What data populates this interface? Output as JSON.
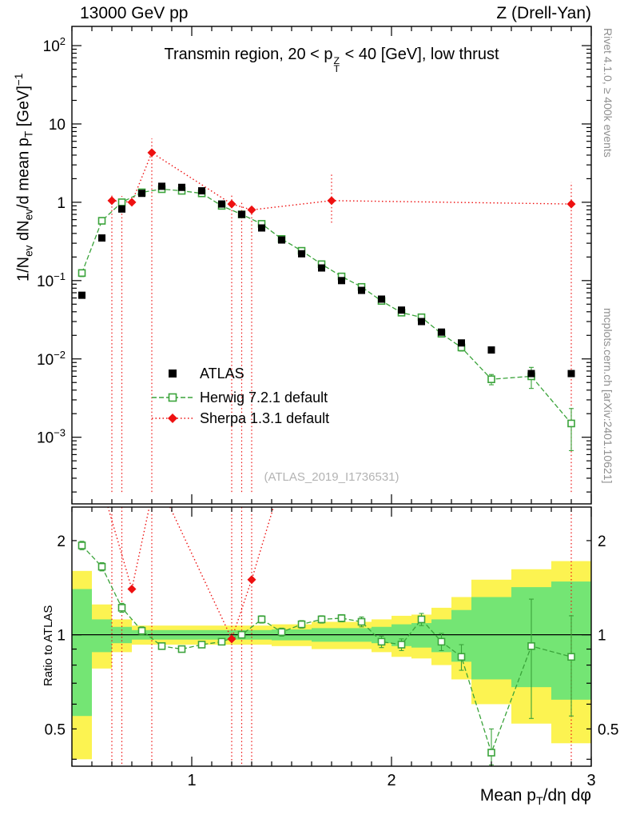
{
  "labels": {
    "header_left": "13000 GeV pp",
    "header_right": "Z (Drell-Yan)",
    "title_pre": "Transmin region, 20 < p",
    "title_sup": "Z",
    "title_sub": "T",
    "title_post": " < 40 [GeV], low thrust",
    "watermark": "(ATLAS_2019_I1736531)",
    "rivet_note": "Rivet 4.1.0, ≥ 400k events",
    "mcplots_note": "mcplots.cern.ch [arXiv:2401.10621]",
    "ratio_ylabel": "Ratio to ATLAS",
    "ylabel": {
      "p1": "1/N",
      "s1": "ev",
      "p2": " dN",
      "s2": "ev",
      "p3": "/d mean p",
      "s3": "T",
      "p4": " [GeV]",
      "sup": "−1"
    },
    "xlabel": {
      "p1": "Mean p",
      "s1": "T",
      "p2": "/dη dφ"
    }
  },
  "chart_data": {
    "type": "line",
    "panels": [
      "main-spectrum-log",
      "ratio-log"
    ],
    "title": "Transmin region, 20 < pT^Z < 40 [GeV], low thrust",
    "xlabel": "Mean pT/deta dphi",
    "ylabel": "1/Nev dNev/d mean pT [GeV]^-1",
    "ratio_ylabel": "Ratio to ATLAS",
    "x_range": [
      0.4,
      3.0
    ],
    "y_main_range": [
      0.000141,
      176
    ],
    "y_ratio_range": [
      0.38,
      2.56
    ],
    "x_major_ticks": [
      1,
      2,
      3
    ],
    "x_minor_step": 0.1,
    "y_main_decades": [
      -3,
      -2,
      -1,
      0,
      1,
      2
    ],
    "y_ratio_ticks": [
      0.5,
      1,
      2
    ],
    "y_ratio_minor_ticks": [
      0.4,
      0.5,
      0.6,
      0.7,
      0.8,
      0.9,
      2
    ],
    "colors": {
      "atlas": "#000000",
      "herwig": "#3aa33a",
      "sherpa": "#ee1111",
      "band_yellow": "#fcf351",
      "band_green": "#74e574"
    },
    "series": {
      "atlas": {
        "name": "ATLAS",
        "x": [
          0.45,
          0.55,
          0.65,
          0.75,
          0.85,
          0.95,
          1.05,
          1.15,
          1.25,
          1.35,
          1.45,
          1.55,
          1.65,
          1.75,
          1.85,
          1.95,
          2.05,
          2.15,
          2.25,
          2.35,
          2.5,
          2.7,
          2.9
        ],
        "y": [
          0.065,
          0.35,
          0.82,
          1.3,
          1.6,
          1.55,
          1.4,
          0.95,
          0.7,
          0.47,
          0.33,
          0.22,
          0.145,
          0.1,
          0.075,
          0.058,
          0.042,
          0.03,
          0.022,
          0.016,
          0.013,
          0.0065,
          0.0065
        ],
        "yerr_frac": 0.04
      },
      "herwig": {
        "name": "Herwig 7.2.1 default",
        "x": [
          0.45,
          0.55,
          0.65,
          0.75,
          0.85,
          0.95,
          1.05,
          1.15,
          1.25,
          1.35,
          1.45,
          1.55,
          1.65,
          1.75,
          1.85,
          1.95,
          2.05,
          2.15,
          2.25,
          2.35,
          2.5,
          2.7,
          2.9
        ],
        "y": [
          0.125,
          0.58,
          1.0,
          1.34,
          1.47,
          1.4,
          1.3,
          0.9,
          0.7,
          0.53,
          0.34,
          0.24,
          0.162,
          0.113,
          0.083,
          0.055,
          0.039,
          0.034,
          0.021,
          0.014,
          0.0055,
          0.006,
          0.0015
        ],
        "yerr_frac": [
          0.1,
          0.06,
          0.04,
          0.03,
          0.03,
          0.03,
          0.03,
          0.03,
          0.03,
          0.04,
          0.04,
          0.04,
          0.04,
          0.05,
          0.05,
          0.06,
          0.06,
          0.07,
          0.08,
          0.1,
          0.15,
          0.3,
          0.55
        ],
        "ratio": [
          1.93,
          1.65,
          1.22,
          1.03,
          0.92,
          0.9,
          0.93,
          0.95,
          1.0,
          1.12,
          1.02,
          1.08,
          1.12,
          1.13,
          1.1,
          0.95,
          0.93,
          1.12,
          0.95,
          0.85,
          0.42,
          0.92,
          0.85
        ],
        "ratio_err": [
          0.06,
          0.05,
          0.04,
          0.03,
          0.02,
          0.02,
          0.02,
          0.02,
          0.02,
          0.03,
          0.03,
          0.03,
          0.03,
          0.03,
          0.04,
          0.04,
          0.04,
          0.05,
          0.06,
          0.08,
          0.08,
          0.38,
          0.3
        ]
      },
      "sherpa": {
        "name": "Sherpa 1.3.1 default",
        "x": [
          0.6,
          0.7,
          0.8,
          1.2,
          1.3,
          1.7,
          2.9
        ],
        "y": [
          1.05,
          1.0,
          4.3,
          0.95,
          0.8,
          1.05,
          0.95
        ],
        "err_lines": [
          {
            "x": 0.6,
            "lo": 0.0002,
            "hi": 1.25
          },
          {
            "x": 0.65,
            "lo": 0.0002,
            "hi": 1.2
          },
          {
            "x": 0.8,
            "lo": 0.0002,
            "hi": 6.5
          },
          {
            "x": 1.2,
            "lo": 0.0002,
            "hi": 1.25
          },
          {
            "x": 1.25,
            "lo": 0.0002,
            "hi": 1.0
          },
          {
            "x": 1.3,
            "lo": 0.0002,
            "hi": 0.95
          },
          {
            "x": 1.7,
            "lo": 0.55,
            "hi": 2.3
          },
          {
            "x": 2.9,
            "lo": 0.0002,
            "hi": 1.8
          }
        ],
        "ratio_x": [
          0.7,
          1.2,
          1.3
        ],
        "ratio": [
          1.4,
          0.97,
          1.5
        ],
        "ratio_err_x": [
          0.6,
          0.65,
          0.8,
          1.2,
          1.25,
          1.3,
          2.9
        ],
        "ratio_line": [
          [
            0.57,
            2.7
          ],
          [
            0.7,
            1.4
          ],
          [
            0.82,
            3.2
          ],
          [
            1.2,
            0.97
          ],
          [
            1.3,
            1.5
          ],
          [
            1.42,
            2.7
          ]
        ]
      }
    },
    "bands": {
      "edges": [
        0.4,
        0.5,
        0.6,
        0.7,
        0.8,
        0.9,
        1.0,
        1.1,
        1.2,
        1.3,
        1.4,
        1.5,
        1.6,
        1.7,
        1.8,
        1.9,
        2.0,
        2.1,
        2.2,
        2.3,
        2.4,
        2.6,
        2.8,
        3.0
      ],
      "yellow": [
        [
          0.4,
          1.6
        ],
        [
          0.78,
          1.25
        ],
        [
          0.88,
          1.12
        ],
        [
          0.93,
          1.07
        ],
        [
          0.93,
          1.07
        ],
        [
          0.93,
          1.07
        ],
        [
          0.93,
          1.07
        ],
        [
          0.93,
          1.07
        ],
        [
          0.93,
          1.07
        ],
        [
          0.93,
          1.07
        ],
        [
          0.92,
          1.08
        ],
        [
          0.92,
          1.08
        ],
        [
          0.9,
          1.1
        ],
        [
          0.9,
          1.1
        ],
        [
          0.9,
          1.1
        ],
        [
          0.88,
          1.12
        ],
        [
          0.85,
          1.15
        ],
        [
          0.84,
          1.16
        ],
        [
          0.8,
          1.22
        ],
        [
          0.72,
          1.32
        ],
        [
          0.6,
          1.5
        ],
        [
          0.52,
          1.62
        ],
        [
          0.45,
          1.72
        ]
      ],
      "green": [
        [
          0.55,
          1.4
        ],
        [
          0.88,
          1.12
        ],
        [
          0.94,
          1.06
        ],
        [
          0.965,
          1.035
        ],
        [
          0.965,
          1.035
        ],
        [
          0.965,
          1.035
        ],
        [
          0.965,
          1.035
        ],
        [
          0.965,
          1.035
        ],
        [
          0.965,
          1.035
        ],
        [
          0.965,
          1.035
        ],
        [
          0.96,
          1.04
        ],
        [
          0.96,
          1.04
        ],
        [
          0.95,
          1.05
        ],
        [
          0.95,
          1.05
        ],
        [
          0.95,
          1.05
        ],
        [
          0.94,
          1.06
        ],
        [
          0.92,
          1.08
        ],
        [
          0.91,
          1.09
        ],
        [
          0.88,
          1.12
        ],
        [
          0.82,
          1.2
        ],
        [
          0.72,
          1.32
        ],
        [
          0.68,
          1.42
        ],
        [
          0.62,
          1.48
        ]
      ]
    },
    "legend": {
      "items": [
        {
          "series": "atlas",
          "marker": "filled-square",
          "line": "none"
        },
        {
          "series": "herwig",
          "marker": "open-square",
          "line": "dashed"
        },
        {
          "series": "sherpa",
          "marker": "filled-diamond",
          "line": "dotted"
        }
      ],
      "position": "middle-left"
    }
  }
}
